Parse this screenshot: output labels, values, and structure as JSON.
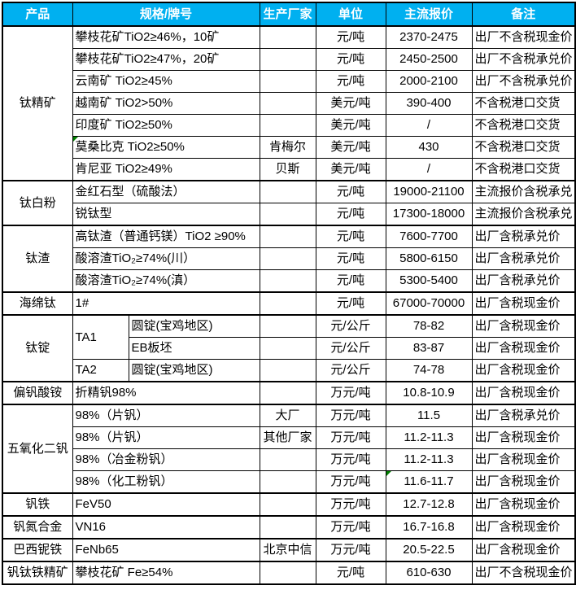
{
  "colors": {
    "header_bg": "#00B0F0",
    "header_text": "#FFFFFF",
    "border": "#000000",
    "comment_marker_green": "#008000"
  },
  "table": {
    "headers": {
      "product": "产品",
      "spec": "规格/牌号",
      "manufacturer": "生产厂家",
      "unit": "单位",
      "price": "主流报价",
      "note": "备注"
    },
    "products": [
      "钛精矿",
      "钛白粉",
      "钛渣",
      "海绵钛",
      "钛锭",
      "偏钒酸铵",
      "五氧化二钒",
      "钒铁",
      "钒氮合金",
      "巴西铌铁",
      "钒钛铁精矿"
    ],
    "rows": [
      {
        "spec": "攀枝花矿TiO2≥46%，10矿",
        "mfr": "",
        "unit": "元/吨",
        "price": "2370-2475",
        "note": "出厂不含税现金价"
      },
      {
        "spec": "攀枝花矿TiO2≥47%，20矿",
        "mfr": "",
        "unit": "元/吨",
        "price": "2450-2500",
        "note": "出厂不含税承兑价"
      },
      {
        "spec": "云南矿 TiO2≥45%",
        "mfr": "",
        "unit": "元/吨",
        "price": "2000-2100",
        "note": "出厂不含税承兑价"
      },
      {
        "spec": "越南矿 TiO2>50%",
        "mfr": "",
        "unit": "美元/吨",
        "price": "390-400",
        "note": "不含税港口交货"
      },
      {
        "spec": "印度矿 TiO2≥50%",
        "mfr": "",
        "unit": "美元/吨",
        "price": "/",
        "note": "不含税港口交货"
      },
      {
        "spec": "莫桑比克 TiO2≥50%",
        "mfr": "肯梅尔",
        "unit": "美元/吨",
        "price": "430",
        "note": "不含税港口交货"
      },
      {
        "spec": "肯尼亚 TiO2≥49%",
        "mfr": "贝斯",
        "unit": "美元/吨",
        "price": "/",
        "note": "不含税港口交货"
      },
      {
        "spec": "金红石型（硫酸法）",
        "mfr": "",
        "unit": "元/吨",
        "price": "19000-21100",
        "note": "主流报价含税承兑"
      },
      {
        "spec": "锐钛型",
        "mfr": "",
        "unit": "元/吨",
        "price": "17300-18000",
        "note": "主流报价含税承兑"
      },
      {
        "spec": "高钛渣（普通钙镁）TiO2 ≥90%",
        "mfr": "",
        "unit": "元/吨",
        "price": "7600-7700",
        "note": "出厂含税承兑价"
      },
      {
        "spec": "酸溶渣TiO₂≥74%(川）",
        "mfr": "",
        "unit": "元/吨",
        "price": "5800-6150",
        "note": "出厂含税承兑价"
      },
      {
        "spec": "酸溶渣TiO₂≥74%(滇）",
        "mfr": "",
        "unit": "元/吨",
        "price": "5300-5400",
        "note": "出厂含税承兑价"
      },
      {
        "spec": "1#",
        "mfr": "",
        "unit": "元/吨",
        "price": "67000-70000",
        "note": "出厂含税现金价"
      },
      {
        "brand": "TA1",
        "spec": "圆锭(宝鸡地区)",
        "mfr": "",
        "unit": "元/公斤",
        "price": "78-82",
        "note": "出厂含税现金价"
      },
      {
        "spec": "EB板坯",
        "mfr": "",
        "unit": "元/公斤",
        "price": "83-87",
        "note": "出厂含税现金价"
      },
      {
        "brand": "TA2",
        "spec": "圆锭(宝鸡地区)",
        "mfr": "",
        "unit": "元/公斤",
        "price": "74-78",
        "note": "出厂含税现金价"
      },
      {
        "spec": "折精钒98%",
        "mfr": "",
        "unit": "万元/吨",
        "price": "10.8-10.9",
        "note": "出厂含税现金价"
      },
      {
        "spec": "98%（片钒）",
        "mfr": "大厂",
        "unit": "万元/吨",
        "price": "11.5",
        "note": "出厂含税承兑价"
      },
      {
        "spec": "98%（片钒）",
        "mfr": "其他厂家",
        "unit": "万元/吨",
        "price": "11.2-11.3",
        "note": "出厂含税现金价"
      },
      {
        "spec": "98%（冶金粉钒）",
        "mfr": "",
        "unit": "万元/吨",
        "price": "11.2-11.3",
        "note": "出厂含税现金价"
      },
      {
        "spec": "98%（化工粉钒）",
        "mfr": "",
        "unit": "万元/吨",
        "price": "11.6-11.7",
        "note": "出厂含税现金价"
      },
      {
        "spec": "FeV50",
        "mfr": "",
        "unit": "万元/吨",
        "price": "12.7-12.8",
        "note": "出厂含税现金价"
      },
      {
        "spec": "VN16",
        "mfr": "",
        "unit": "万元/吨",
        "price": "16.7-16.8",
        "note": "出厂含税现金价"
      },
      {
        "spec": "FeNb65",
        "mfr": "北京中信",
        "unit": "万元/吨",
        "price": "20.5-22.5",
        "note": "出厂含税现金价"
      },
      {
        "spec": "攀枝花矿 Fe≥54%",
        "mfr": "",
        "unit": "元/吨",
        "price": "610-630",
        "note": "出厂不含税现金价"
      }
    ]
  }
}
